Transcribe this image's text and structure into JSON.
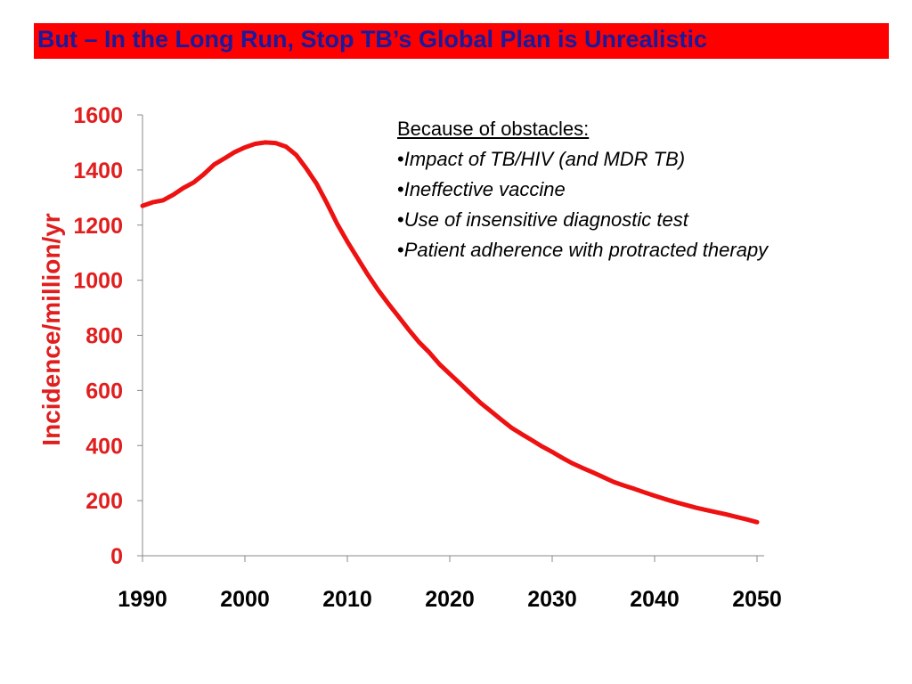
{
  "slide": {
    "title": "But – In the Long Run, Stop TB’s Global Plan is Unrealistic"
  },
  "annotation": {
    "heading": "Because of obstacles:",
    "bullet": "•",
    "items": [
      "Impact of TB/HIV (and MDR TB)",
      "Ineffective vaccine",
      "Use of insensitive diagnostic test",
      "Patient adherence with protracted therapy"
    ]
  },
  "colors": {
    "title_bg": "#ff0000",
    "title_text": "#1a1a9c",
    "series": "#ee1111",
    "axis_text": "#e11e1e"
  },
  "chart_data": {
    "type": "line",
    "title": "",
    "xlabel": "",
    "ylabel": "Incidence/million/yr",
    "xlim": [
      1990,
      2050
    ],
    "ylim": [
      0,
      1600
    ],
    "x_ticks": [
      "1990",
      "2000",
      "2010",
      "2020",
      "2030",
      "2040",
      "2050"
    ],
    "y_ticks": [
      "0",
      "200",
      "400",
      "600",
      "800",
      "1000",
      "1200",
      "1400",
      "1600"
    ],
    "grid": false,
    "legend": "none",
    "series": [
      {
        "name": "",
        "x": [
          1990,
          1991,
          1992,
          1993,
          1994,
          1995,
          1996,
          1997,
          1998,
          1999,
          2000,
          2001,
          2002,
          2003,
          2004,
          2005,
          2006,
          2007,
          2008,
          2009,
          2010,
          2011,
          2012,
          2013,
          2014,
          2015,
          2016,
          2017,
          2018,
          2019,
          2020,
          2021,
          2022,
          2023,
          2024,
          2025,
          2026,
          2027,
          2028,
          2029,
          2030,
          2031,
          2032,
          2033,
          2034,
          2035,
          2036,
          2037,
          2038,
          2039,
          2040,
          2041,
          2042,
          2043,
          2044,
          2045,
          2046,
          2047,
          2048,
          2049,
          2050
        ],
        "values": [
          1270,
          1283,
          1290,
          1310,
          1335,
          1355,
          1385,
          1420,
          1442,
          1465,
          1482,
          1495,
          1500,
          1498,
          1485,
          1455,
          1405,
          1350,
          1280,
          1205,
          1140,
          1080,
          1020,
          965,
          915,
          868,
          820,
          775,
          738,
          695,
          660,
          625,
          590,
          555,
          525,
          495,
          465,
          442,
          420,
          397,
          377,
          355,
          335,
          318,
          302,
          285,
          268,
          255,
          243,
          230,
          218,
          206,
          195,
          185,
          175,
          166,
          158,
          150,
          141,
          132,
          122
        ]
      }
    ]
  }
}
